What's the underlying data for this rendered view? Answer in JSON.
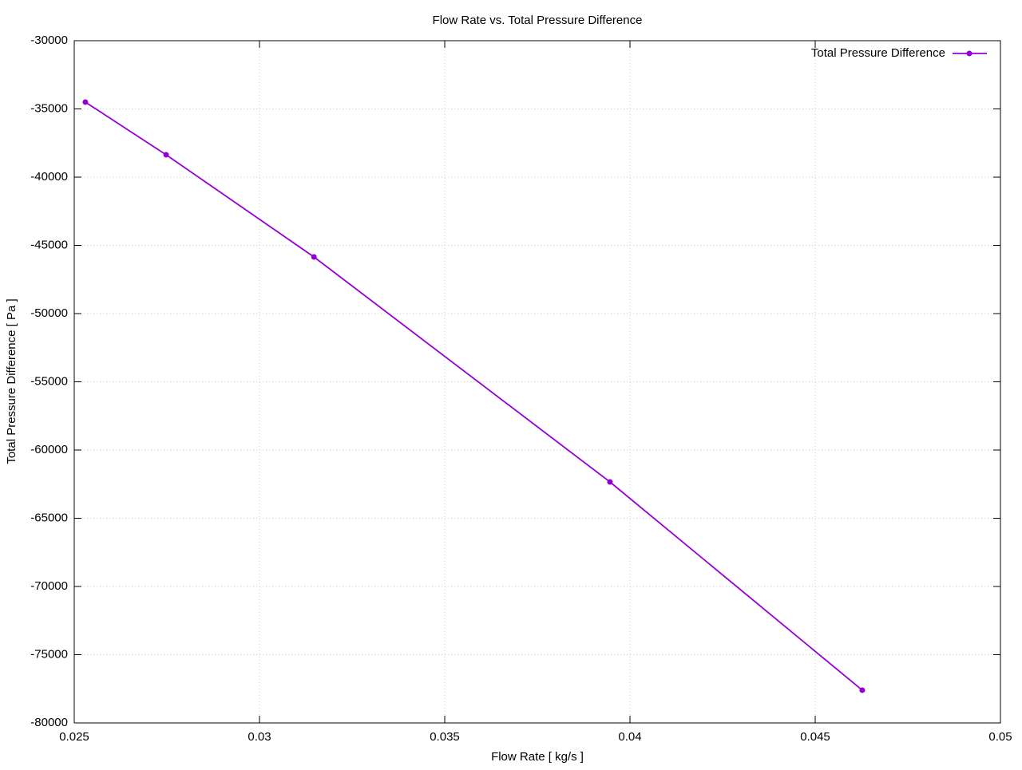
{
  "chart_data": {
    "type": "line",
    "title": "Flow Rate vs. Total Pressure Difference",
    "x_label": "Flow Rate [ kg/s ]",
    "y_label": "Total Pressure Difference [ Pa ]",
    "x": [
      0.0253,
      0.02748,
      0.03147,
      0.03946,
      0.04627
    ],
    "series": [
      {
        "name": "Total Pressure Difference",
        "color": "#9400d3",
        "values": [
          -34500,
          -38360,
          -45850,
          -62340,
          -77600
        ]
      }
    ],
    "xlim": [
      0.025,
      0.05
    ],
    "xticks": [
      0.025,
      0.03,
      0.035,
      0.04,
      0.045,
      0.05
    ],
    "ylim": [
      -80000,
      -30000
    ],
    "yticks": [
      -80000,
      -75000,
      -70000,
      -65000,
      -60000,
      -55000,
      -50000,
      -45000,
      -40000,
      -35000,
      -30000
    ],
    "grid": true,
    "legend": "top-right"
  }
}
